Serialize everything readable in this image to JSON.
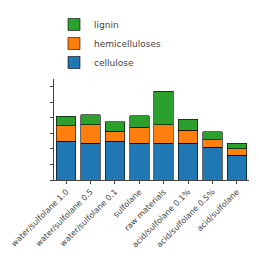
{
  "chart_data": {
    "type": "bar",
    "stacked": true,
    "categories": [
      "water/sulfolane 1.0",
      "water/sulfolane 0.5",
      "water/sulfolane 0.1",
      "sulfolane",
      "raw materials",
      "acid/sulfolane 0.1%",
      "acid/sulfolane 0.5%",
      "acid/sulfolane"
    ],
    "series": [
      {
        "name": "cellulose",
        "values": [
          0.5,
          0.47,
          0.5,
          0.47,
          0.47,
          0.47,
          0.42,
          0.32
        ]
      },
      {
        "name": "hemicelluloses",
        "values": [
          0.2,
          0.24,
          0.13,
          0.21,
          0.24,
          0.17,
          0.1,
          0.08
        ]
      },
      {
        "name": "lignin",
        "values": [
          0.12,
          0.13,
          0.12,
          0.15,
          0.43,
          0.14,
          0.1,
          0.07
        ]
      }
    ],
    "ylim": [
      0,
      1.3
    ],
    "yticks": [
      0,
      0.2,
      0.4,
      0.6,
      0.8,
      1.0,
      1.2
    ],
    "grid": false,
    "legend": "upper left",
    "tick_labels": "x"
  }
}
